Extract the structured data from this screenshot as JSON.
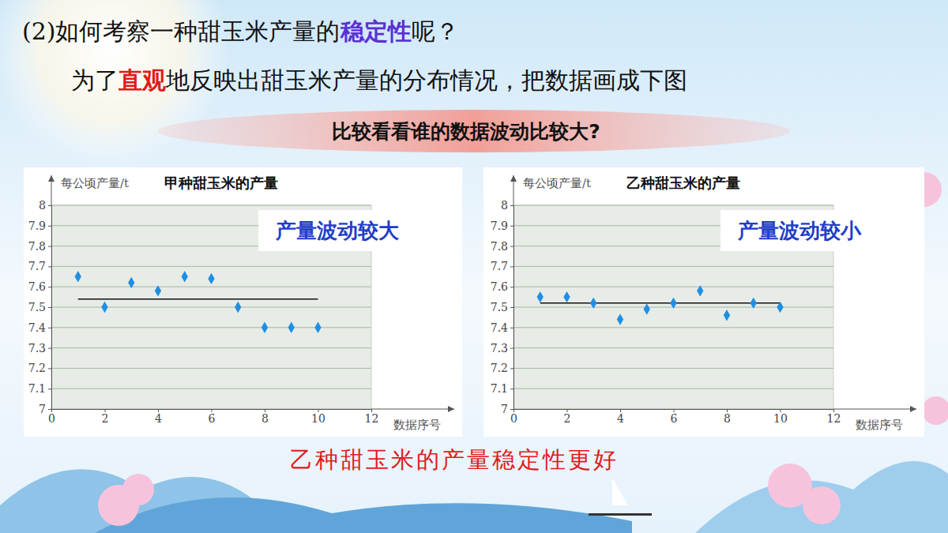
{
  "slide": {
    "heading": [
      "(2)如何考察一种甜玉米产量的",
      "稳定性",
      "呢？"
    ],
    "intro": [
      "为了",
      "直观",
      "地反映出甜玉米产量的分布情况，把数据画成下图"
    ],
    "banner": "比较看看谁的数据波动比较大?",
    "conclusion": "乙种甜玉米的产量稳定性更好"
  },
  "chart_data": [
    {
      "type": "scatter",
      "title": "甲种甜玉米的产量",
      "xlabel": "数据序号",
      "ylabel": "每公顷产量/t",
      "annotation": "产量波动较大",
      "x": [
        1,
        2,
        3,
        4,
        5,
        6,
        7,
        8,
        9,
        10
      ],
      "values": [
        7.65,
        7.5,
        7.62,
        7.58,
        7.65,
        7.64,
        7.5,
        7.4,
        7.4,
        7.4
      ],
      "mean_line": 7.54,
      "color": "#1e8fe6",
      "marker": "diamond",
      "xlim": [
        0,
        12
      ],
      "xticks": [
        0,
        2,
        4,
        6,
        8,
        10,
        12
      ],
      "ylim": [
        7,
        8
      ],
      "yticks": [
        7,
        7.1,
        7.2,
        7.3,
        7.4,
        7.5,
        7.6,
        7.7,
        7.8,
        7.9,
        8
      ],
      "grid": true
    },
    {
      "type": "scatter",
      "title": "乙种甜玉米的产量",
      "xlabel": "数据序号",
      "ylabel": "每公顷产量/t",
      "annotation": "产量波动较小",
      "x": [
        1,
        2,
        3,
        4,
        5,
        6,
        7,
        8,
        9,
        10
      ],
      "values": [
        7.55,
        7.55,
        7.52,
        7.44,
        7.49,
        7.52,
        7.58,
        7.46,
        7.52,
        7.5
      ],
      "mean_line": 7.52,
      "color": "#1e8fe6",
      "marker": "diamond",
      "xlim": [
        0,
        12
      ],
      "xticks": [
        0,
        2,
        4,
        6,
        8,
        10,
        12
      ],
      "ylim": [
        7,
        8
      ],
      "yticks": [
        7,
        7.1,
        7.2,
        7.3,
        7.4,
        7.5,
        7.6,
        7.7,
        7.8,
        7.9,
        8
      ],
      "grid": true
    }
  ]
}
